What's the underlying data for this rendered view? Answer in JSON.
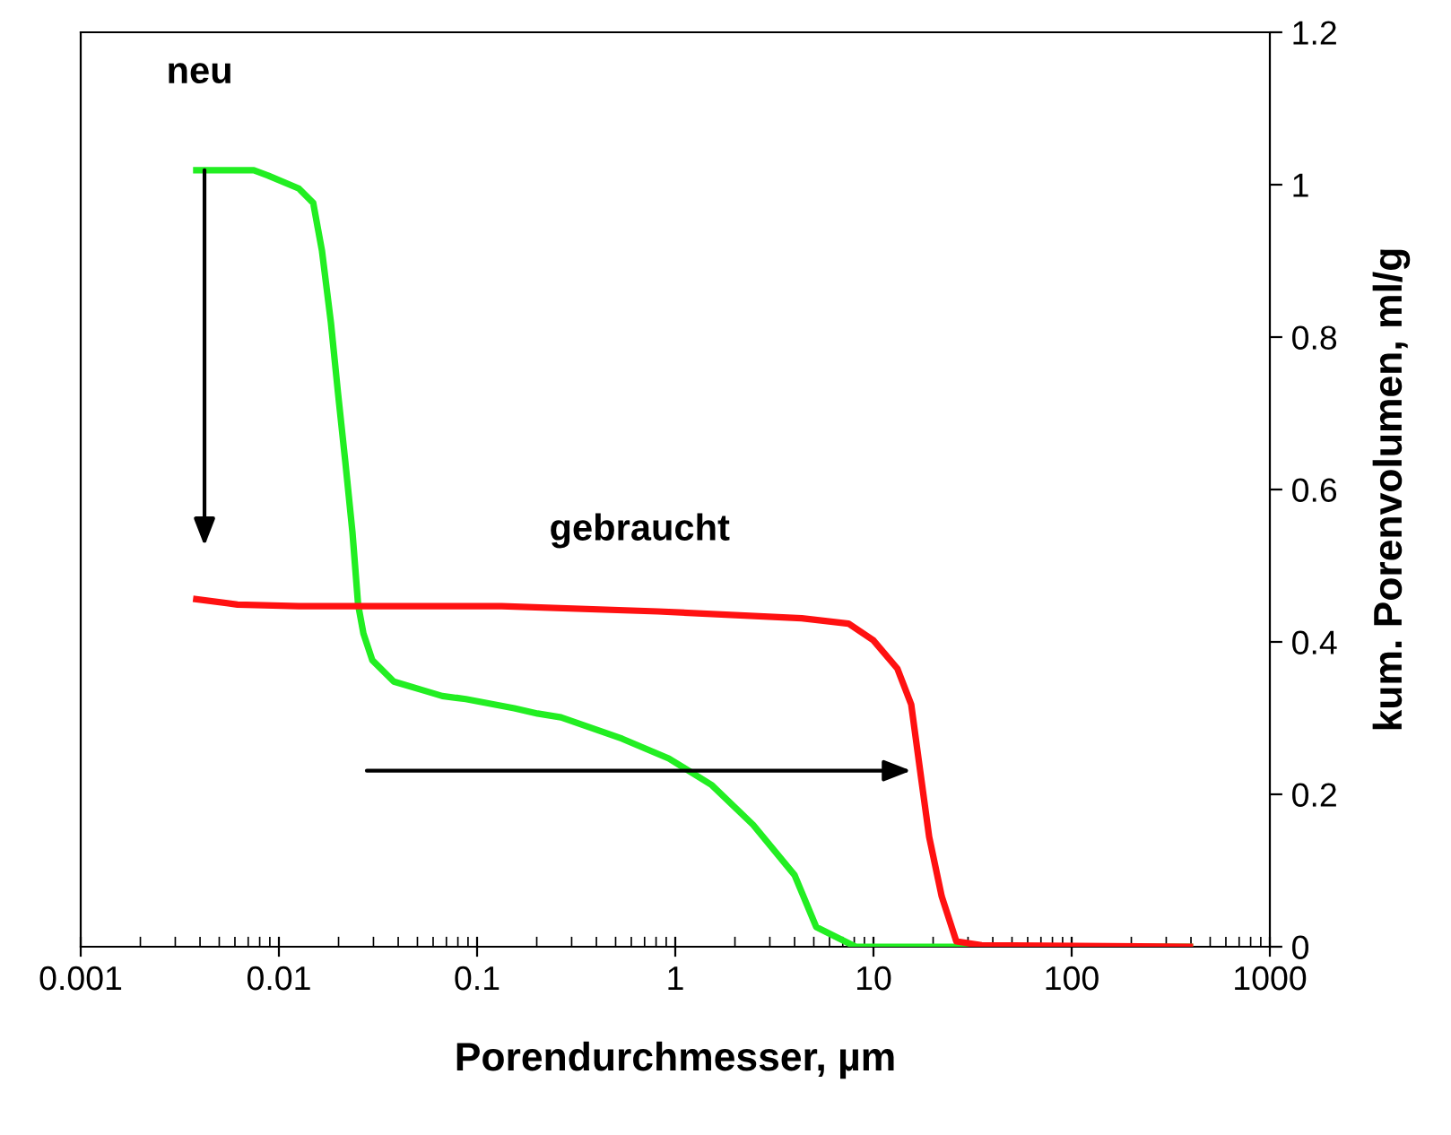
{
  "chart_data": {
    "type": "line",
    "xlabel": "Porendurchmesser, µm",
    "y2label": "kum. Porenvolumen, ml/g",
    "log": "x",
    "grid": false,
    "legend": false,
    "marker": "none",
    "line_style": "solid",
    "xlim": [
      0.001,
      1000
    ],
    "xticks": [
      0.001,
      0.01,
      0.1,
      1,
      10,
      100,
      1000
    ],
    "y2lim": [
      0,
      1.2
    ],
    "y2ticks": [
      0,
      0.2,
      0.4,
      0.6,
      0.8,
      1,
      1.2
    ],
    "series": [
      {
        "name": "neu",
        "color": "#22ee22",
        "axis": "y2",
        "x": [
          0.00383,
          0.00747,
          0.00883,
          0.0126,
          0.0149,
          0.0165,
          0.0183,
          0.0199,
          0.0216,
          0.0235,
          0.0251,
          0.0267,
          0.0296,
          0.038,
          0.0542,
          0.0668,
          0.0877,
          0.154,
          0.202,
          0.265,
          0.539,
          0.927,
          1.53,
          2.47,
          4.0,
          5.14,
          8.13,
          395
        ],
        "values": [
          1.019,
          1.019,
          1.012,
          0.995,
          0.976,
          0.913,
          0.819,
          0.725,
          0.638,
          0.544,
          0.449,
          0.411,
          0.376,
          0.348,
          0.336,
          0.329,
          0.325,
          0.313,
          0.306,
          0.301,
          0.273,
          0.247,
          0.212,
          0.16,
          0.094,
          0.026,
          0,
          0
        ]
      },
      {
        "name": "gebraucht",
        "color": "#ff1111",
        "axis": "y2",
        "x": [
          0.00383,
          0.00618,
          0.0126,
          0.133,
          0.818,
          4.35,
          7.48,
          10.0,
          13.2,
          15.5,
          17.2,
          19.1,
          22.1,
          26.2,
          35.1,
          395
        ],
        "values": [
          0.456,
          0.449,
          0.447,
          0.447,
          0.44,
          0.431,
          0.424,
          0.402,
          0.365,
          0.318,
          0.231,
          0.144,
          0.066,
          0.007,
          0.002,
          0
        ]
      }
    ]
  }
}
